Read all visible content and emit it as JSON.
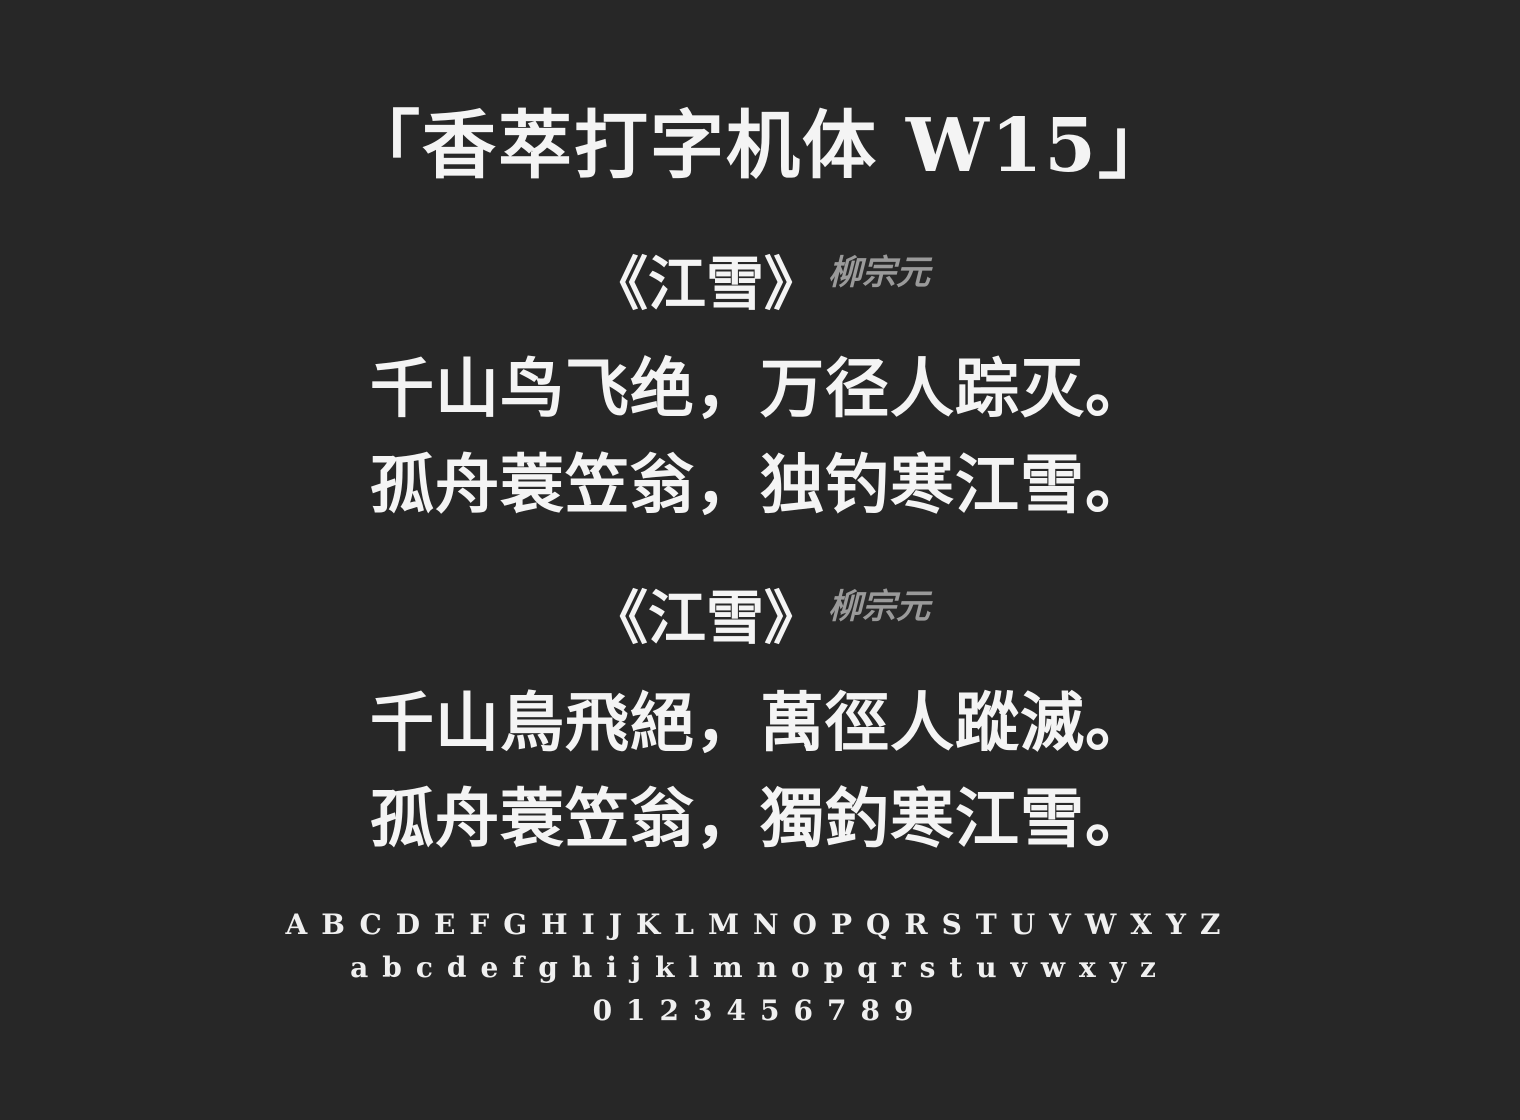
{
  "title": "「香萃打字机体 W15」",
  "section_simplified": {
    "poem_title": "《江雪》",
    "author": "柳宗元",
    "line1": "千山鸟飞绝，万径人踪灭。",
    "line2": "孤舟蓑笠翁，独钓寒江雪。"
  },
  "section_traditional": {
    "poem_title": "《江雪》",
    "author": "柳宗元",
    "line1": "千山鳥飛絕，萬徑人蹤滅。",
    "line2": "孤舟蓑笠翁，獨釣寒江雪。"
  },
  "glyphs": {
    "uppercase": "ABCDEFGHIJKLMNOPQRSTUVWXYZ",
    "lowercase": "abcdefghijklmnopqrstuvwxyz",
    "digits": "0123456789"
  },
  "colors": {
    "background": "#272727",
    "text": "#f4f4f4",
    "author": "#9a9a9a"
  }
}
